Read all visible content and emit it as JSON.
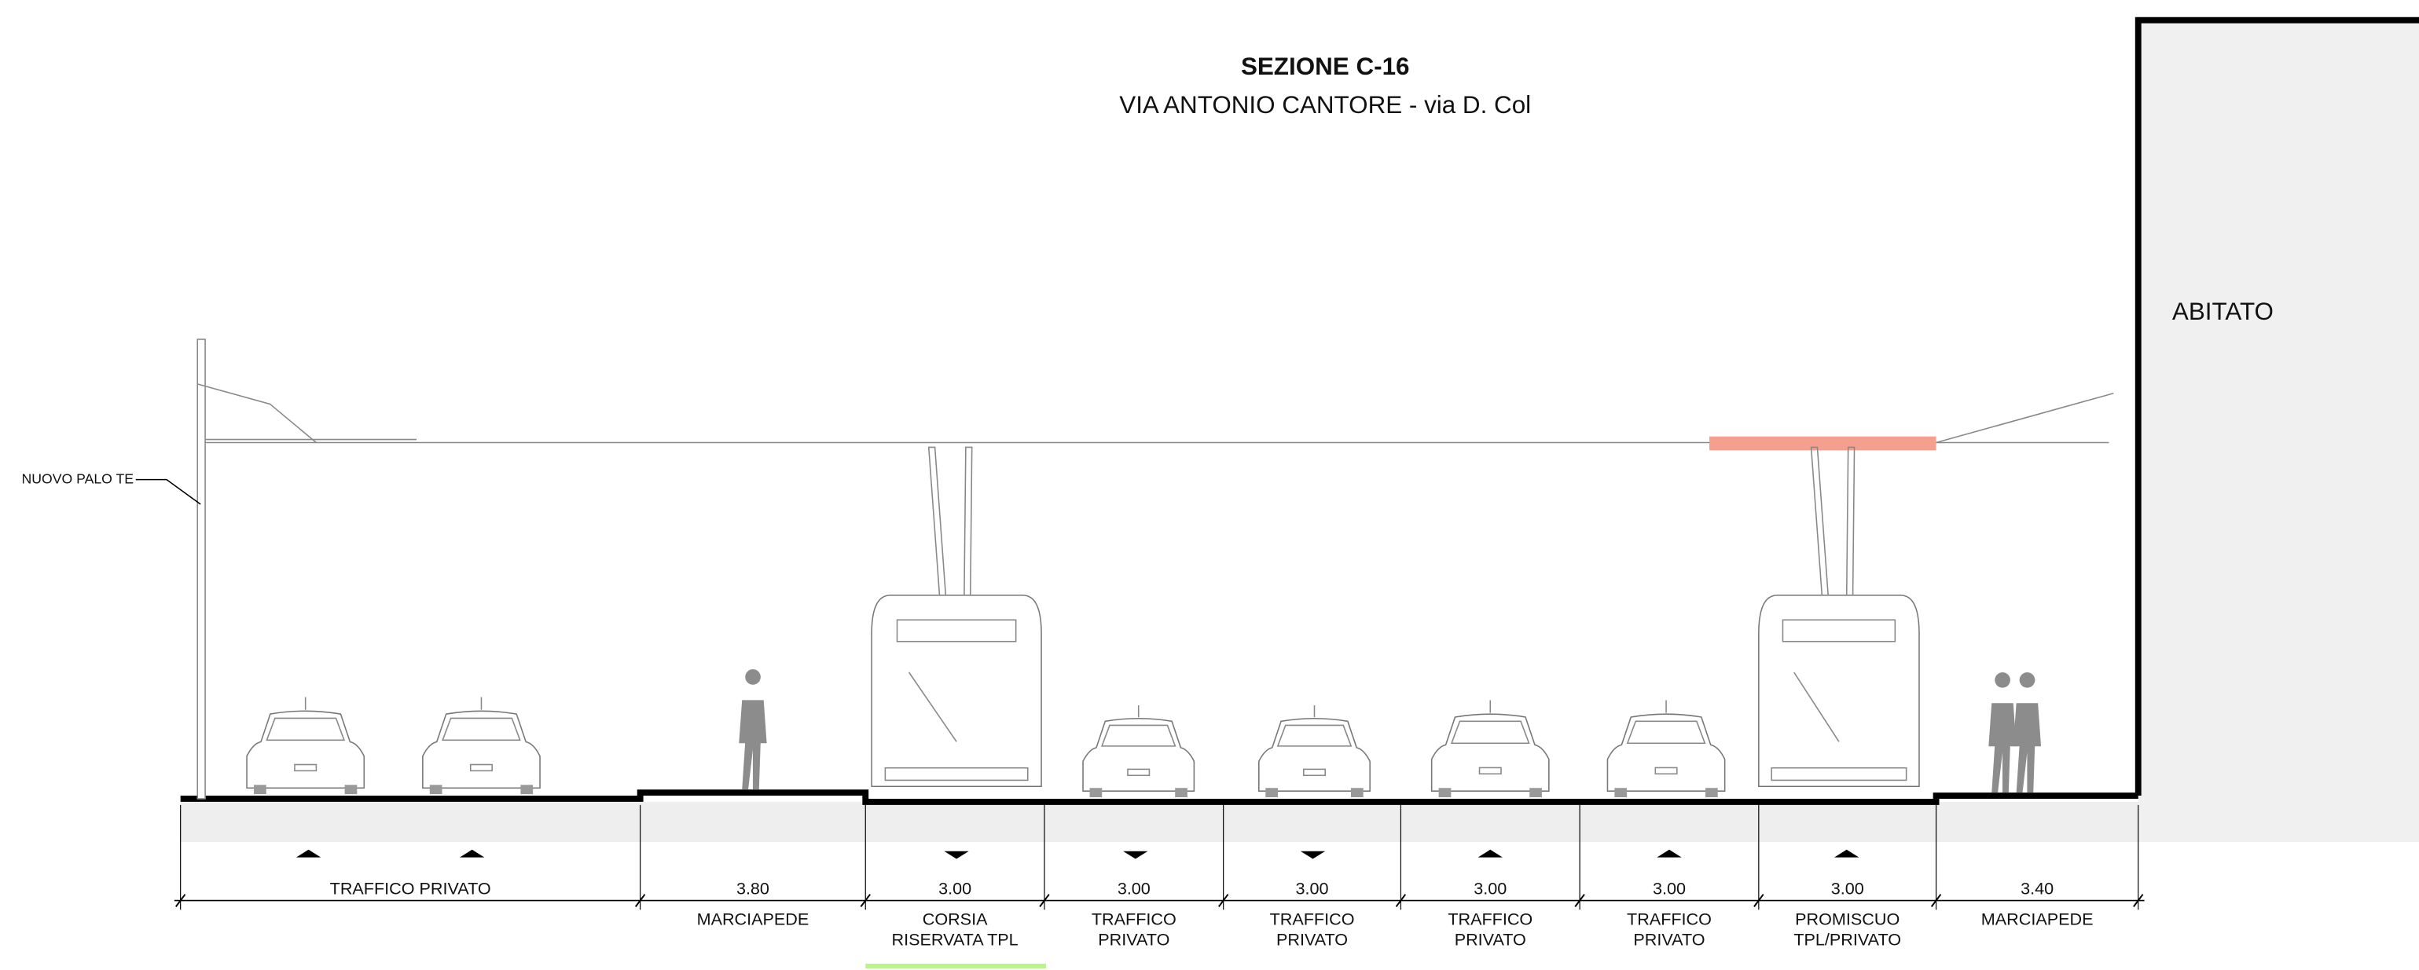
{
  "title": "SEZIONE C-16",
  "subtitle": "VIA ANTONIO CANTORE - via D. Col",
  "building_label": "ABITATO",
  "pole_label": "NUOVO PALO TE",
  "segments": [
    {
      "label": [
        "TRAFFICO PRIVATO"
      ]
    },
    {
      "width": "3.80",
      "label": [
        "MARCIAPEDE"
      ]
    },
    {
      "width": "3.00",
      "label": [
        "CORSIA",
        "RISERVATA TPL"
      ]
    },
    {
      "width": "3.00",
      "label": [
        "TRAFFICO",
        "PRIVATO"
      ]
    },
    {
      "width": "3.00",
      "label": [
        "TRAFFICO",
        "PRIVATO"
      ]
    },
    {
      "width": "3.00",
      "label": [
        "TRAFFICO",
        "PRIVATO"
      ]
    },
    {
      "width": "3.00",
      "label": [
        "TRAFFICO",
        "PRIVATO"
      ]
    },
    {
      "width": "3.00",
      "label": [
        "PROMISCUO",
        "TPL/PRIVATO"
      ]
    },
    {
      "width": "3.40",
      "label": [
        "MARCIAPEDE"
      ]
    }
  ]
}
